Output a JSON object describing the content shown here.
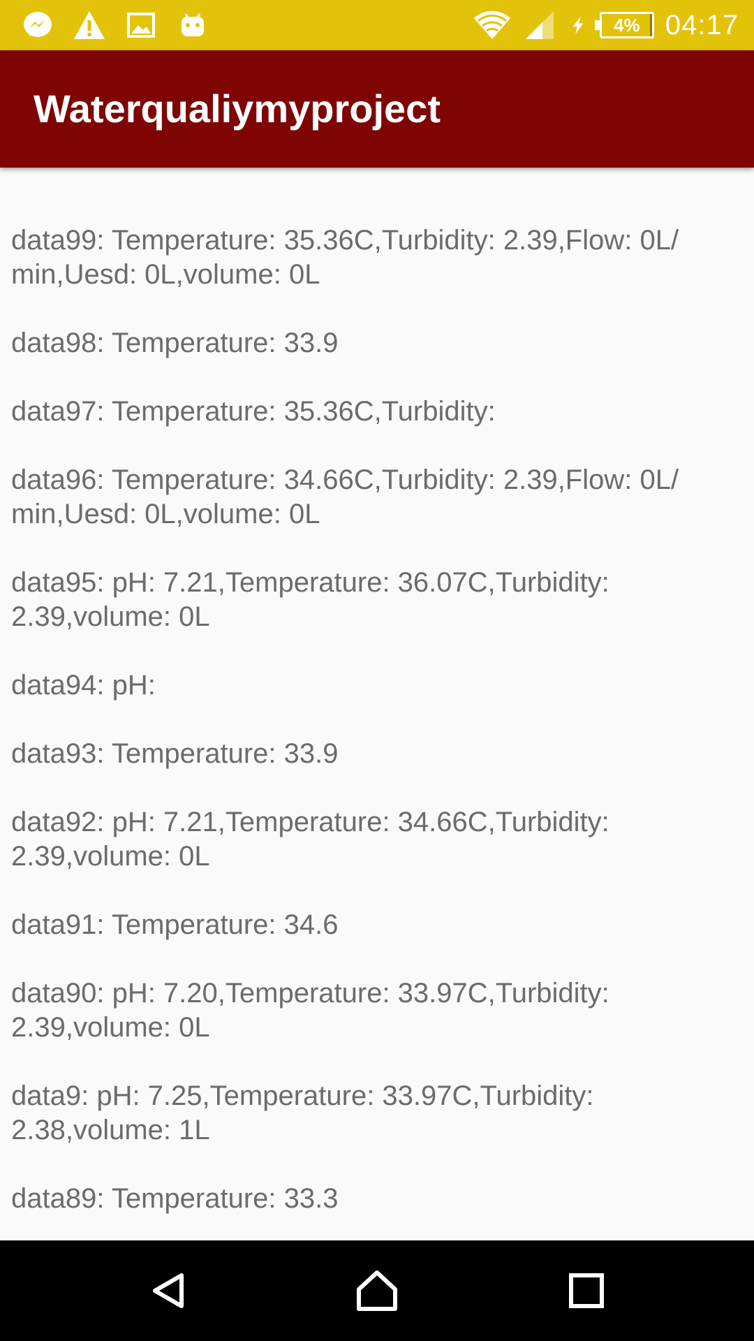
{
  "status_bar": {
    "left_icons": [
      "messenger-icon",
      "warning-icon",
      "image-icon",
      "android-icon"
    ],
    "right_icons": [
      "wifi-icon",
      "signal-icon",
      "charging-icon"
    ],
    "battery_level": "4%",
    "time": "04:17",
    "background_color": "#e3c20a"
  },
  "app_bar": {
    "title": "Waterqualiymyproject",
    "background_color": "#7f0505"
  },
  "entries": [
    "data99: Temperature: 35.36C,Turbidity: 2.39,Flow: 0L/​min,Uesd: 0L,volume: 0L",
    "data98: Temperature: 33.9",
    "data97: Temperature: 35.36C,Turbidity:",
    "data96: Temperature: 34.66C,Turbidity: 2.39,Flow: 0L/​min,Uesd: 0L,volume: 0L",
    "data95: pH: 7.21,Temperature: 36.07C,Turbidity: 2.39,volume: 0L",
    "data94: pH:",
    "data93: Temperature: 33.9",
    "data92: pH: 7.21,Temperature: 34.66C,Turbidity: 2.39,volume: 0L",
    "data91: Temperature: 34.6",
    "data90: pH: 7.20,Temperature: 33.97C,Turbidity: 2.39,volume: 0L",
    "data9: pH: 7.25,Temperature: 33.97C,Turbidity: 2.38,volume: 1L",
    "data89: Temperature: 33.3"
  ],
  "nav_bar": {
    "buttons": [
      "back-icon",
      "home-icon",
      "recents-icon"
    ]
  }
}
